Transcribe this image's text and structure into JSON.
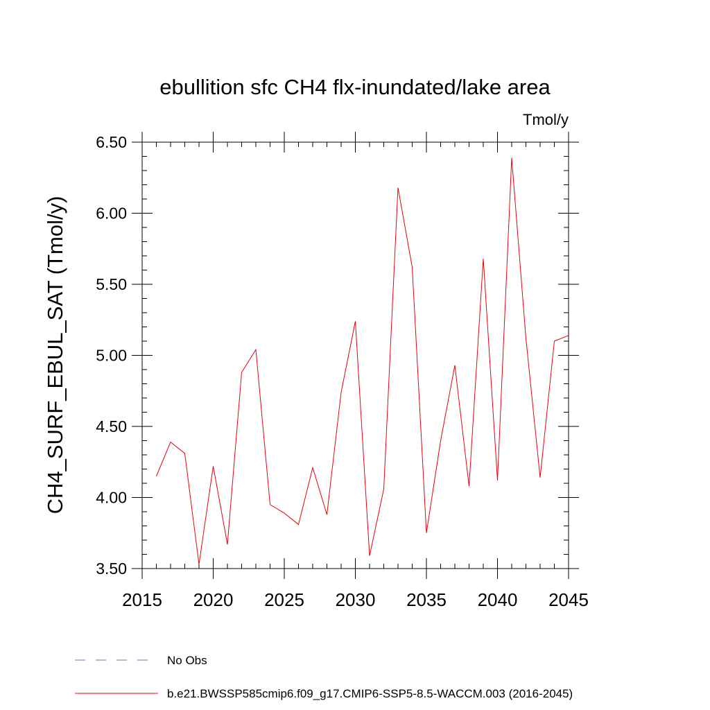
{
  "chart_data": {
    "type": "line",
    "title": "ebullition sfc CH4 flx-inundated/lake area",
    "units_label": "Tmol/y",
    "xlabel": "",
    "ylabel": "CH4_SURF_EBUL_SAT  (Tmol/y)",
    "xlim": [
      2015,
      2045
    ],
    "ylim": [
      3.5,
      6.5
    ],
    "x_ticks": [
      "2015",
      "2020",
      "2025",
      "2030",
      "2035",
      "2040",
      "2045"
    ],
    "y_ticks": [
      "3.50",
      "4.00",
      "4.50",
      "5.00",
      "5.50",
      "6.00",
      "6.50"
    ],
    "grid": false,
    "legend_position": "bottom",
    "legend": [
      {
        "label": "No Obs",
        "color": "#7b6fb8",
        "dash": "dashed"
      },
      {
        "label": "b.e21.BWSSP585cmip6.f09_g17.CMIP6-SSP5-8.5-WACCM.003 (2016-2045)",
        "color": "#e8000b",
        "dash": "solid"
      }
    ],
    "series": [
      {
        "name": "b.e21.BWSSP585cmip6.f09_g17.CMIP6-SSP5-8.5-WACCM.003 (2016-2045)",
        "color": "#e8000b",
        "x": [
          2016,
          2017,
          2018,
          2019,
          2020,
          2021,
          2022,
          2023,
          2024,
          2025,
          2026,
          2027,
          2028,
          2029,
          2030,
          2031,
          2032,
          2033,
          2034,
          2035,
          2036,
          2037,
          2038,
          2039,
          2040,
          2041,
          2042,
          2043,
          2044,
          2045
        ],
        "y": [
          4.15,
          4.39,
          4.31,
          3.53,
          4.22,
          3.67,
          4.88,
          5.04,
          3.95,
          3.89,
          3.81,
          4.21,
          3.88,
          4.74,
          5.24,
          3.59,
          4.06,
          6.18,
          5.62,
          3.75,
          4.4,
          4.93,
          4.08,
          5.68,
          4.12,
          6.39,
          5.12,
          4.14,
          5.1,
          5.14
        ]
      }
    ]
  }
}
